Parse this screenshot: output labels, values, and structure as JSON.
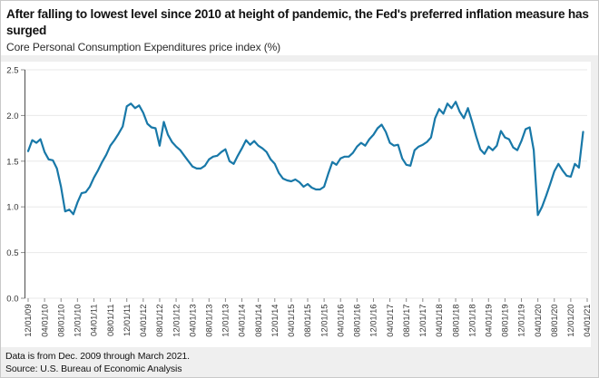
{
  "header": {
    "title": "After falling to lowest level since 2010 at height of pandemic, the Fed's preferred inflation measure has surged",
    "subtitle": "Core Personal Consumption Expenditures price index (%)"
  },
  "footer": {
    "line1": "Data is from Dec. 2009 through March 2021.",
    "line2": "Source: U.S. Bureau of Economic Analysis"
  },
  "chart_data": {
    "type": "line",
    "title": "Core Personal Consumption Expenditures price index (%)",
    "x_start_month": "12/01/09",
    "x_end_month": "03/01/21",
    "x_tick_every_months": 4,
    "x_tick_labels": [
      "12/01/09",
      "04/01/10",
      "08/01/10",
      "12/01/10",
      "04/01/11",
      "08/01/11",
      "12/01/11",
      "04/01/12",
      "08/01/12",
      "12/01/12",
      "04/01/13",
      "08/01/13",
      "12/01/13",
      "04/01/14",
      "08/01/14",
      "12/01/14",
      "04/01/15",
      "08/01/15",
      "12/01/15",
      "04/01/16",
      "08/01/16",
      "12/01/16",
      "04/01/17",
      "08/01/17",
      "12/01/17",
      "04/01/18",
      "08/01/18",
      "12/01/18",
      "04/01/19",
      "08/01/19",
      "12/01/19",
      "04/01/20",
      "08/01/20",
      "12/01/20",
      "04/01/21"
    ],
    "y_tick_labels": [
      "0.0",
      "0.5",
      "1.0",
      "1.5",
      "2.0",
      "2.5"
    ],
    "ylim": [
      0,
      2.5
    ],
    "grid": true,
    "legend": "none",
    "line_color": "#1878a8",
    "grid_color": "#e8e8e8",
    "axis_color": "#4d4d4d",
    "tick_color": "#8c8c8c",
    "tick_label_color": "#333333",
    "values": [
      1.61,
      1.73,
      1.7,
      1.74,
      1.6,
      1.52,
      1.51,
      1.42,
      1.22,
      0.95,
      0.97,
      0.92,
      1.05,
      1.15,
      1.16,
      1.22,
      1.32,
      1.4,
      1.49,
      1.57,
      1.67,
      1.73,
      1.8,
      1.88,
      2.1,
      2.13,
      2.08,
      2.11,
      2.03,
      1.91,
      1.87,
      1.86,
      1.67,
      1.93,
      1.79,
      1.71,
      1.66,
      1.62,
      1.56,
      1.5,
      1.44,
      1.42,
      1.42,
      1.45,
      1.52,
      1.55,
      1.56,
      1.6,
      1.63,
      1.5,
      1.47,
      1.56,
      1.64,
      1.73,
      1.68,
      1.72,
      1.67,
      1.64,
      1.6,
      1.52,
      1.47,
      1.37,
      1.31,
      1.29,
      1.28,
      1.3,
      1.27,
      1.22,
      1.25,
      1.21,
      1.19,
      1.19,
      1.22,
      1.36,
      1.49,
      1.46,
      1.53,
      1.55,
      1.55,
      1.59,
      1.66,
      1.7,
      1.67,
      1.74,
      1.79,
      1.86,
      1.9,
      1.82,
      1.7,
      1.67,
      1.68,
      1.53,
      1.46,
      1.45,
      1.62,
      1.66,
      1.68,
      1.71,
      1.76,
      1.97,
      2.07,
      2.02,
      2.13,
      2.08,
      2.15,
      2.04,
      1.97,
      2.08,
      1.93,
      1.77,
      1.63,
      1.58,
      1.66,
      1.62,
      1.67,
      1.83,
      1.76,
      1.74,
      1.65,
      1.62,
      1.72,
      1.85,
      1.87,
      1.62,
      0.91,
      1.0,
      1.12,
      1.25,
      1.39,
      1.47,
      1.4,
      1.34,
      1.33,
      1.47,
      1.43,
      1.82
    ]
  }
}
